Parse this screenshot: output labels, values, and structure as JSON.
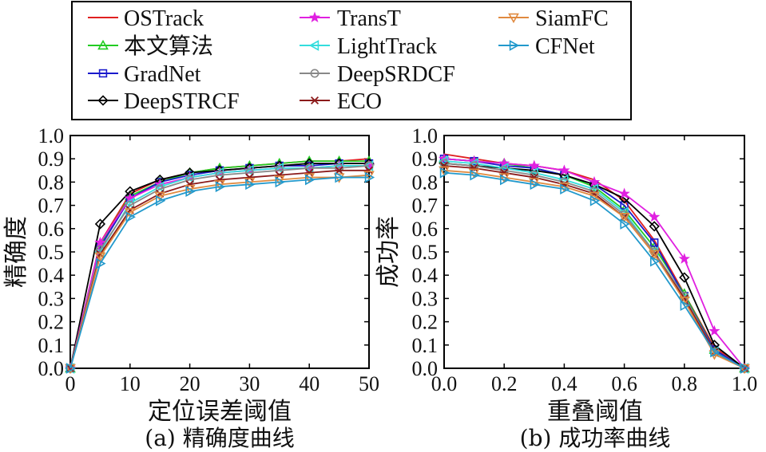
{
  "legend": {
    "entries": [
      {
        "name": "OSTrack",
        "color": "#e02020",
        "marker": "none"
      },
      {
        "name": "本文算法",
        "color": "#22cc22",
        "marker": "triangle-up"
      },
      {
        "name": "GradNet",
        "color": "#1a1acc",
        "marker": "square"
      },
      {
        "name": "DeepSTRCF",
        "color": "#000000",
        "marker": "diamond"
      },
      {
        "name": "TransT",
        "color": "#e020e0",
        "marker": "star"
      },
      {
        "name": "LightTrack",
        "color": "#33dddd",
        "marker": "triangle-left"
      },
      {
        "name": "DeepSRDCF",
        "color": "#888888",
        "marker": "circle"
      },
      {
        "name": "ECO",
        "color": "#8b1a1a",
        "marker": "x"
      },
      {
        "name": "SiamFC",
        "color": "#e08a40",
        "marker": "triangle-down"
      },
      {
        "name": "CFNet",
        "color": "#2299cc",
        "marker": "triangle-right"
      }
    ]
  },
  "chart_data": [
    {
      "type": "line",
      "caption": "(a) 精确度曲线",
      "xlabel": "定位误差阈值",
      "ylabel": "精确度",
      "xlim": [
        0,
        50
      ],
      "ylim": [
        0,
        1.0
      ],
      "xticks": [
        "0",
        "10",
        "20",
        "30",
        "40",
        "50"
      ],
      "yticks": [
        "0.0",
        "0.1",
        "0.2",
        "0.3",
        "0.4",
        "0.5",
        "0.6",
        "0.7",
        "0.8",
        "0.9",
        "1.0"
      ],
      "grid": false,
      "x": [
        0,
        5,
        10,
        15,
        20,
        25,
        30,
        35,
        40,
        45,
        50
      ],
      "series": [
        {
          "name": "OSTrack",
          "values": [
            0.0,
            0.54,
            0.75,
            0.81,
            0.84,
            0.86,
            0.87,
            0.88,
            0.89,
            0.89,
            0.9
          ]
        },
        {
          "name": "本文算法",
          "values": [
            0.0,
            0.53,
            0.74,
            0.8,
            0.84,
            0.86,
            0.87,
            0.88,
            0.89,
            0.89,
            0.89
          ]
        },
        {
          "name": "GradNet",
          "values": [
            0.0,
            0.52,
            0.73,
            0.8,
            0.83,
            0.85,
            0.86,
            0.87,
            0.87,
            0.88,
            0.88
          ]
        },
        {
          "name": "DeepSTRCF",
          "values": [
            0.0,
            0.62,
            0.76,
            0.81,
            0.84,
            0.85,
            0.86,
            0.87,
            0.88,
            0.88,
            0.88
          ]
        },
        {
          "name": "TransT",
          "values": [
            0.0,
            0.54,
            0.73,
            0.79,
            0.82,
            0.84,
            0.85,
            0.86,
            0.86,
            0.87,
            0.87
          ]
        },
        {
          "name": "LightTrack",
          "values": [
            0.0,
            0.5,
            0.71,
            0.78,
            0.82,
            0.84,
            0.85,
            0.86,
            0.86,
            0.87,
            0.87
          ]
        },
        {
          "name": "DeepSRDCF",
          "values": [
            0.0,
            0.51,
            0.7,
            0.77,
            0.81,
            0.83,
            0.84,
            0.85,
            0.86,
            0.86,
            0.87
          ]
        },
        {
          "name": "ECO",
          "values": [
            0.0,
            0.49,
            0.68,
            0.75,
            0.79,
            0.81,
            0.82,
            0.83,
            0.84,
            0.85,
            0.85
          ]
        },
        {
          "name": "SiamFC",
          "values": [
            0.0,
            0.48,
            0.67,
            0.74,
            0.77,
            0.79,
            0.8,
            0.81,
            0.82,
            0.82,
            0.83
          ]
        },
        {
          "name": "CFNet",
          "values": [
            0.0,
            0.45,
            0.65,
            0.72,
            0.76,
            0.78,
            0.79,
            0.8,
            0.81,
            0.82,
            0.82
          ]
        }
      ]
    },
    {
      "type": "line",
      "caption": "(b) 成功率曲线",
      "xlabel": "重叠阈值",
      "ylabel": "成功率",
      "xlim": [
        0,
        1.0
      ],
      "ylim": [
        0,
        1.0
      ],
      "xticks": [
        "0.0",
        "0.2",
        "0.4",
        "0.6",
        "0.8",
        "1.0"
      ],
      "yticks": [
        "0.0",
        "0.1",
        "0.2",
        "0.3",
        "0.4",
        "0.5",
        "0.6",
        "0.7",
        "0.8",
        "0.9",
        "1.0"
      ],
      "grid": false,
      "x": [
        0.0,
        0.1,
        0.2,
        0.3,
        0.4,
        0.5,
        0.6,
        0.7,
        0.8,
        0.9,
        1.0
      ],
      "series": [
        {
          "name": "OSTrack",
          "values": [
            0.92,
            0.9,
            0.88,
            0.87,
            0.85,
            0.81,
            0.72,
            0.55,
            0.32,
            0.09,
            0.0
          ]
        },
        {
          "name": "本文算法",
          "values": [
            0.9,
            0.89,
            0.88,
            0.86,
            0.83,
            0.78,
            0.68,
            0.52,
            0.32,
            0.08,
            0.0
          ]
        },
        {
          "name": "GradNet",
          "values": [
            0.9,
            0.89,
            0.87,
            0.86,
            0.83,
            0.79,
            0.7,
            0.54,
            0.31,
            0.08,
            0.0
          ]
        },
        {
          "name": "DeepSTRCF",
          "values": [
            0.88,
            0.87,
            0.86,
            0.85,
            0.83,
            0.79,
            0.73,
            0.61,
            0.39,
            0.1,
            0.0
          ]
        },
        {
          "name": "TransT",
          "values": [
            0.9,
            0.89,
            0.88,
            0.87,
            0.85,
            0.8,
            0.75,
            0.65,
            0.47,
            0.16,
            0.0
          ]
        },
        {
          "name": "LightTrack",
          "values": [
            0.89,
            0.88,
            0.86,
            0.84,
            0.81,
            0.77,
            0.67,
            0.5,
            0.3,
            0.07,
            0.0
          ]
        },
        {
          "name": "DeepSRDCF",
          "values": [
            0.88,
            0.87,
            0.85,
            0.83,
            0.8,
            0.76,
            0.66,
            0.5,
            0.31,
            0.07,
            0.0
          ]
        },
        {
          "name": "ECO",
          "values": [
            0.87,
            0.86,
            0.84,
            0.82,
            0.79,
            0.75,
            0.65,
            0.49,
            0.3,
            0.07,
            0.0
          ]
        },
        {
          "name": "SiamFC",
          "values": [
            0.85,
            0.84,
            0.82,
            0.8,
            0.78,
            0.74,
            0.65,
            0.49,
            0.29,
            0.06,
            0.0
          ]
        },
        {
          "name": "CFNet",
          "values": [
            0.84,
            0.83,
            0.81,
            0.79,
            0.77,
            0.72,
            0.62,
            0.46,
            0.27,
            0.07,
            0.0
          ]
        }
      ]
    }
  ]
}
